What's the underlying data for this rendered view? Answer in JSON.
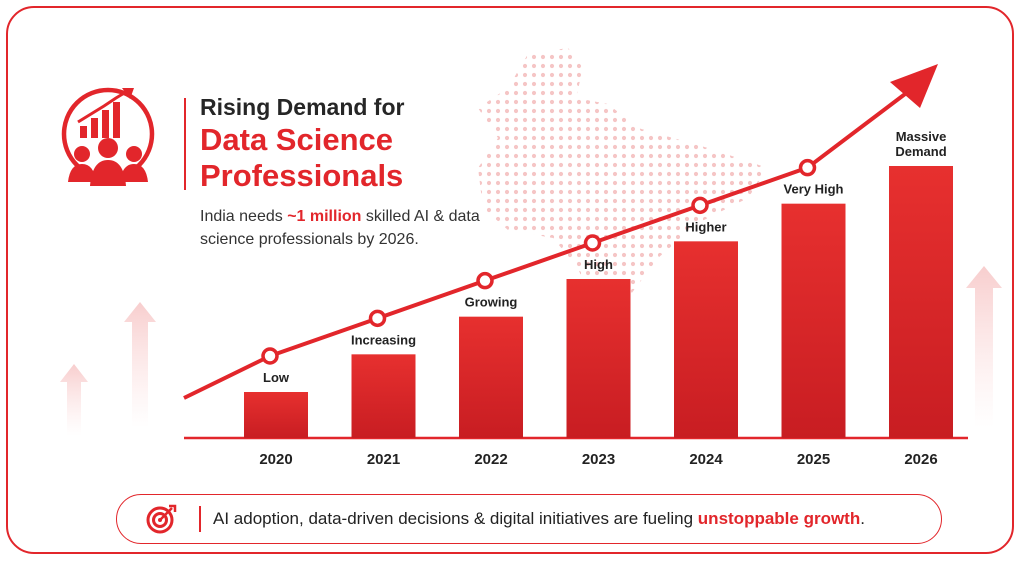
{
  "header": {
    "title_line1": "Rising Demand for",
    "title_line2": "Data Science Professionals",
    "subtitle_prefix": "India needs ",
    "subtitle_highlight": "~1 million",
    "subtitle_suffix": " skilled AI & data science professionals by 2026."
  },
  "chart_data": {
    "type": "bar",
    "categories": [
      "2020",
      "2021",
      "2022",
      "2023",
      "2024",
      "2025",
      "2026"
    ],
    "labels": [
      "Low",
      "Increasing",
      "Growing",
      "High",
      "Higher",
      "Very High",
      "Massive Demand"
    ],
    "values": [
      1,
      2,
      3,
      4,
      5,
      6,
      7
    ],
    "trend_line": true
  },
  "banner": {
    "text": "AI adoption, data-driven decisions & digital initiatives are fueling ",
    "highlight": "unstoppable growth",
    "end": "."
  },
  "colors": {
    "accent": "#e2262b",
    "text": "#222222"
  },
  "icons": {
    "header": "growth-people-icon",
    "banner": "target-icon"
  }
}
